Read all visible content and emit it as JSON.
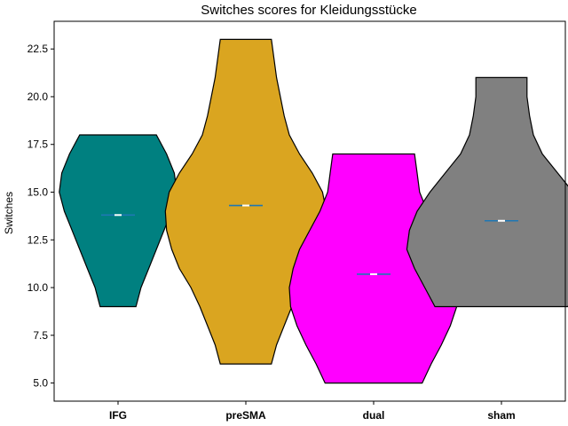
{
  "chart_data": {
    "type": "violin",
    "title": "Switches scores for Kleidungsstücke",
    "xlabel": "",
    "ylabel": "Switches",
    "ylim": [
      4.05,
      23.95
    ],
    "yticks": [
      5.0,
      7.5,
      10.0,
      12.5,
      15.0,
      17.5,
      20.0,
      22.5
    ],
    "ytick_labels": [
      "5.0",
      "7.5",
      "10.0",
      "12.5",
      "15.0",
      "17.5",
      "20.0",
      "22.5"
    ],
    "grid": false,
    "mean_color": "#1f77b4",
    "median_color": "#ffffff",
    "series": [
      {
        "category": "IFG",
        "color": "#008080",
        "min": 9,
        "max": 18,
        "mean": 13.8,
        "median": 13.8,
        "density": [
          [
            9,
            0.14
          ],
          [
            10,
            0.18
          ],
          [
            11,
            0.24
          ],
          [
            12,
            0.3
          ],
          [
            13,
            0.36
          ],
          [
            14,
            0.42
          ],
          [
            15,
            0.46
          ],
          [
            16,
            0.44
          ],
          [
            17,
            0.38
          ],
          [
            18,
            0.3
          ]
        ]
      },
      {
        "category": "preSMA",
        "color": "#DAA520",
        "min": 6,
        "max": 23,
        "mean": 14.3,
        "median": 14.3,
        "density": [
          [
            6,
            0.2
          ],
          [
            7,
            0.24
          ],
          [
            8,
            0.3
          ],
          [
            9,
            0.36
          ],
          [
            10,
            0.43
          ],
          [
            11,
            0.52
          ],
          [
            12,
            0.58
          ],
          [
            13,
            0.62
          ],
          [
            14,
            0.63
          ],
          [
            15,
            0.6
          ],
          [
            16,
            0.52
          ],
          [
            17,
            0.42
          ],
          [
            18,
            0.34
          ],
          [
            19,
            0.3
          ],
          [
            20,
            0.27
          ],
          [
            21,
            0.24
          ],
          [
            22,
            0.22
          ],
          [
            23,
            0.2
          ]
        ]
      },
      {
        "category": "dual",
        "color": "#FF00FF",
        "min": 5,
        "max": 17,
        "mean": 10.7,
        "median": 10.7,
        "density": [
          [
            5,
            0.38
          ],
          [
            6,
            0.45
          ],
          [
            7,
            0.53
          ],
          [
            8,
            0.6
          ],
          [
            9,
            0.65
          ],
          [
            10,
            0.66
          ],
          [
            11,
            0.63
          ],
          [
            12,
            0.58
          ],
          [
            13,
            0.5
          ],
          [
            14,
            0.42
          ],
          [
            15,
            0.36
          ],
          [
            16,
            0.34
          ],
          [
            17,
            0.32
          ]
        ]
      },
      {
        "category": "sham",
        "color": "#808080",
        "min": 9,
        "max": 21,
        "mean": 13.5,
        "median": 13.5,
        "density": [
          [
            9,
            0.52
          ],
          [
            10,
            0.6
          ],
          [
            11,
            0.68
          ],
          [
            12,
            0.74
          ],
          [
            13,
            0.72
          ],
          [
            14,
            0.66
          ],
          [
            15,
            0.56
          ],
          [
            16,
            0.44
          ],
          [
            17,
            0.32
          ],
          [
            18,
            0.25
          ],
          [
            19,
            0.22
          ],
          [
            20,
            0.2
          ],
          [
            21,
            0.2
          ]
        ]
      }
    ]
  }
}
